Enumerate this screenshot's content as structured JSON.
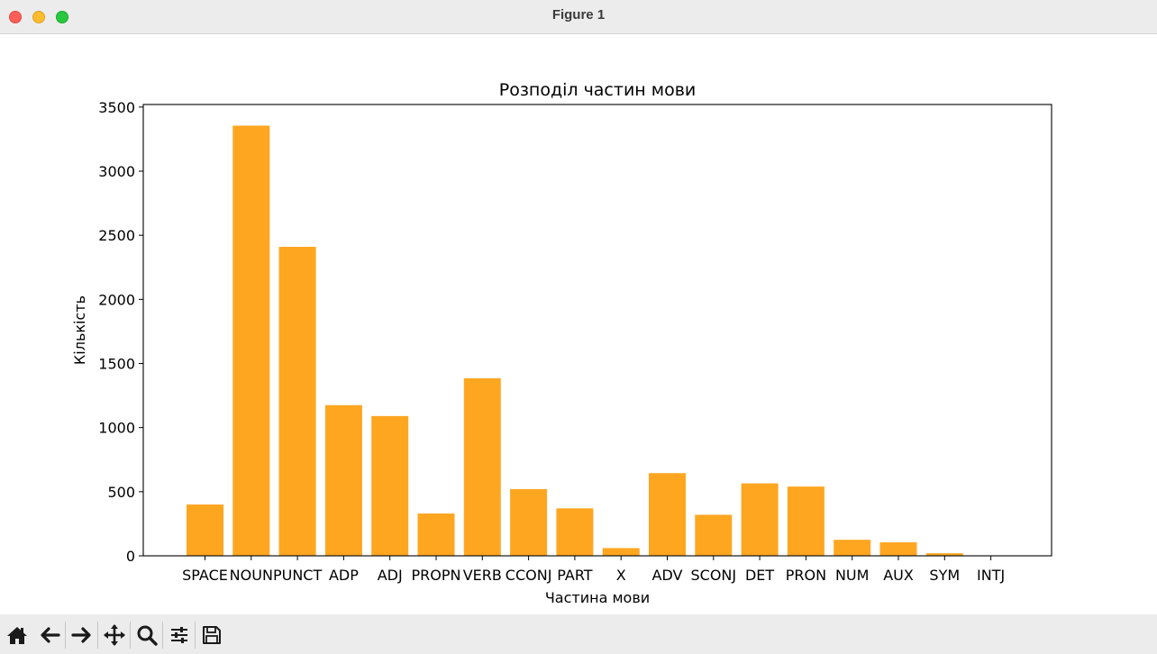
{
  "window": {
    "title": "Figure 1"
  },
  "toolbar": {
    "buttons": [
      {
        "name": "home",
        "icon": "home-icon"
      },
      {
        "name": "back",
        "icon": "arrow-left-icon"
      },
      {
        "name": "forward",
        "icon": "arrow-right-icon"
      },
      {
        "name": "pan",
        "icon": "move-icon"
      },
      {
        "name": "zoom",
        "icon": "magnifier-icon"
      },
      {
        "name": "configure-subplots",
        "icon": "sliders-icon"
      },
      {
        "name": "save",
        "icon": "floppy-disk-icon"
      }
    ]
  },
  "colors": {
    "bar": "#ffa621",
    "axis": "#000000"
  },
  "chart_data": {
    "type": "bar",
    "title": "Розподіл частин мови",
    "xlabel": "Частина мови",
    "ylabel": "Кількість",
    "categories": [
      "SPACE",
      "NOUN",
      "PUNCT",
      "ADP",
      "ADJ",
      "PROPN",
      "VERB",
      "CCONJ",
      "PART",
      "X",
      "ADV",
      "SCONJ",
      "DET",
      "PRON",
      "NUM",
      "AUX",
      "SYM",
      "INTJ"
    ],
    "values": [
      400,
      3355,
      2410,
      1175,
      1090,
      330,
      1385,
      520,
      370,
      60,
      645,
      320,
      565,
      540,
      125,
      105,
      20,
      3
    ],
    "ylim": [
      0,
      3520
    ],
    "yticks": [
      0,
      500,
      1000,
      1500,
      2000,
      2500,
      3000,
      3500
    ],
    "grid": false,
    "legend": "none"
  }
}
